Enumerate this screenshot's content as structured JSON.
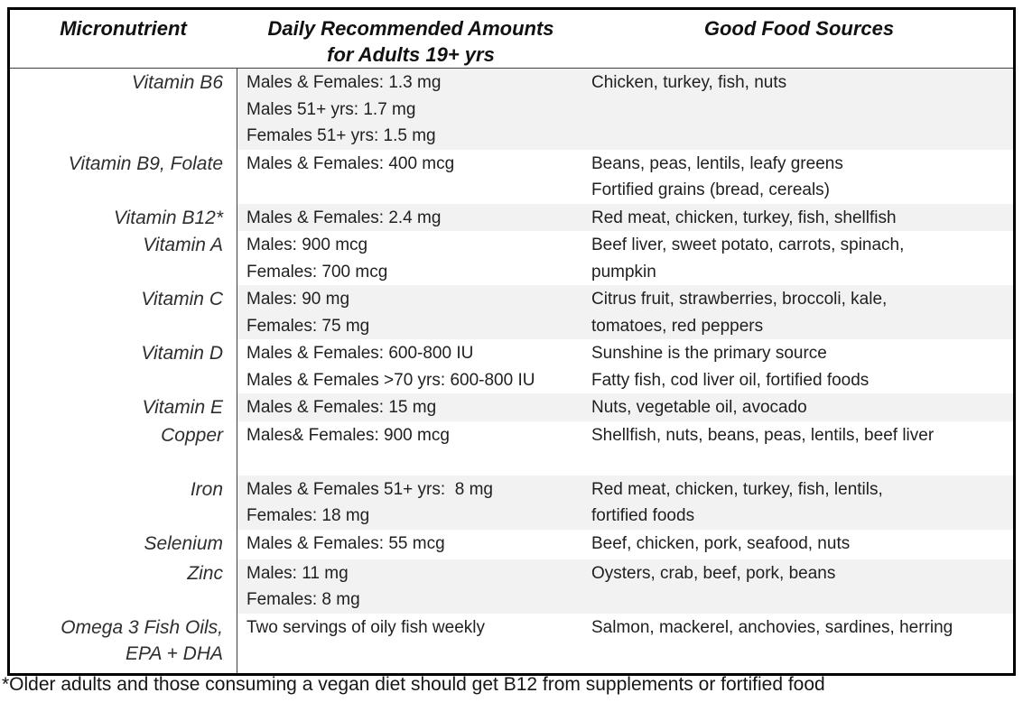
{
  "table": {
    "headers": {
      "micronutrient": "Micronutrient",
      "amounts_line1": "Daily Recommended Amounts",
      "amounts_line2": "for Adults 19+ yrs",
      "sources": "Good Food Sources"
    },
    "rows": [
      {
        "name": [
          "Vitamin B6"
        ],
        "amounts": [
          "Males & Females: 1.3 mg",
          "Males 51+ yrs: 1.7 mg",
          "Females 51+ yrs: 1.5 mg"
        ],
        "sources": [
          "Chicken, turkey, fish, nuts"
        ],
        "shaded": true
      },
      {
        "name": [
          "Vitamin B9, Folate"
        ],
        "amounts": [
          "Males & Females: 400 mcg"
        ],
        "sources": [
          "Beans, peas, lentils, leafy greens",
          "Fortified grains (bread, cereals)"
        ],
        "shaded": false
      },
      {
        "name": [
          "Vitamin B12*"
        ],
        "amounts": [
          "Males & Females: 2.4 mg"
        ],
        "sources": [
          "Red meat, chicken, turkey, fish, shellfish"
        ],
        "shaded": true
      },
      {
        "name": [
          "Vitamin A"
        ],
        "amounts": [
          "Males: 900 mcg",
          "Females: 700 mcg"
        ],
        "sources": [
          "Beef liver, sweet potato, carrots, spinach,",
          "pumpkin"
        ],
        "shaded": false
      },
      {
        "name": [
          "Vitamin C"
        ],
        "amounts": [
          "Males: 90 mg",
          "Females: 75 mg"
        ],
        "sources": [
          "Citrus fruit, strawberries, broccoli, kale,",
          "tomatoes, red peppers"
        ],
        "shaded": true
      },
      {
        "name": [
          "Vitamin D"
        ],
        "amounts": [
          "Males & Females: 600-800 IU",
          "Males & Females >70 yrs: 600-800 IU"
        ],
        "sources": [
          "Sunshine is the primary source",
          "Fatty fish, cod liver oil, fortified foods"
        ],
        "shaded": false
      },
      {
        "name": [
          "Vitamin E"
        ],
        "amounts": [
          "Males & Females: 15 mg"
        ],
        "sources": [
          "Nuts, vegetable oil, avocado"
        ],
        "shaded": true
      },
      {
        "name": [
          "Copper"
        ],
        "amounts": [
          "Males& Females: 900 mcg"
        ],
        "sources": [
          "Shellfish, nuts, beans, peas, lentils, beef liver"
        ],
        "shaded": false
      },
      {
        "name": [
          "Iron"
        ],
        "amounts": [
          "Males & Females 51+ yrs:  8 mg",
          "Females: 18 mg"
        ],
        "sources": [
          "Red meat, chicken, turkey, fish, lentils,",
          "fortified foods"
        ],
        "shaded": true
      },
      {
        "name": [
          "Selenium"
        ],
        "amounts": [
          "Males & Females: 55 mcg"
        ],
        "sources": [
          "Beef, chicken, pork, seafood, nuts"
        ],
        "shaded": false
      },
      {
        "name": [
          "Zinc"
        ],
        "amounts": [
          "Males: 11 mg",
          "Females: 8 mg"
        ],
        "sources": [
          "Oysters, crab, beef, pork, beans"
        ],
        "shaded": true
      },
      {
        "name": [
          "Omega 3 Fish Oils,",
          "EPA + DHA"
        ],
        "amounts": [
          "Two servings of oily fish weekly"
        ],
        "sources": [
          "Salmon, mackerel, anchovies, sardines, herring"
        ],
        "shaded": false
      }
    ]
  },
  "footnote": "*Older adults and those consuming a vegan diet should get B12 from supplements or fortified food",
  "colors": {
    "row_shading": "#f2f2f2",
    "outer_border": "#000000",
    "divider": "#3f3f3f",
    "text": "#1f1f1f"
  }
}
